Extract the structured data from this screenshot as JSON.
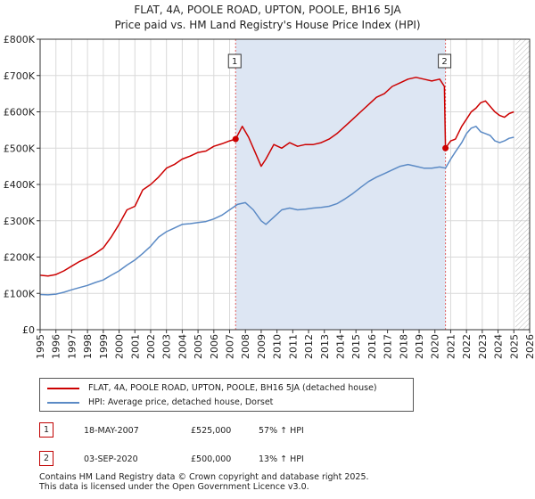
{
  "header": {
    "title": "FLAT, 4A, POOLE ROAD, UPTON, POOLE, BH16 5JA",
    "subtitle": "Price paid vs. HM Land Registry's House Price Index (HPI)"
  },
  "chart_data": {
    "type": "line",
    "title": "FLAT, 4A, POOLE ROAD, UPTON, POOLE, BH16 5JA",
    "subtitle": "Price paid vs. HM Land Registry's House Price Index (HPI)",
    "xlim": [
      1995,
      2026
    ],
    "ylim": [
      0,
      800000
    ],
    "x_ticks": [
      1995,
      1996,
      1997,
      1998,
      1999,
      2000,
      2001,
      2002,
      2003,
      2004,
      2005,
      2006,
      2007,
      2008,
      2009,
      2010,
      2011,
      2012,
      2013,
      2014,
      2015,
      2016,
      2017,
      2018,
      2019,
      2020,
      2021,
      2022,
      2023,
      2024,
      2025,
      2026
    ],
    "x_tick_labels": [
      "1995",
      "1996",
      "1997",
      "1998",
      "1999",
      "2000",
      "2001",
      "2002",
      "2003",
      "2004",
      "2005",
      "2006",
      "2007",
      "2008",
      "2009",
      "2010",
      "2011",
      "2012",
      "2013",
      "2014",
      "2015",
      "2016",
      "2017",
      "2018",
      "2019",
      "2020",
      "2021",
      "2022",
      "2023",
      "2024",
      "2025",
      "2026"
    ],
    "y_ticks": [
      0,
      100000,
      200000,
      300000,
      400000,
      500000,
      600000,
      700000,
      800000
    ],
    "y_tick_labels": [
      "£0",
      "£100K",
      "£200K",
      "£300K",
      "£400K",
      "£500K",
      "£600K",
      "£700K",
      "£800K"
    ],
    "grid": true,
    "colors": {
      "property": "#cc0000",
      "hpi": "#5b8ac5",
      "shade": "#dde6f3",
      "vline": "#e06060",
      "hatch": "#bbbbbb"
    },
    "shaded_regions": [
      [
        2007.38,
        2020.67
      ]
    ],
    "hatched_region": [
      2025.1,
      2026
    ],
    "series": [
      {
        "name": "FLAT, 4A, POOLE ROAD, UPTON, POOLE, BH16 5JA (detached house)",
        "color": "#cc0000",
        "x": [
          1995.0,
          1995.5,
          1996.0,
          1996.5,
          1997.0,
          1997.5,
          1998.0,
          1998.5,
          1999.0,
          1999.5,
          2000.0,
          2000.5,
          2001.0,
          2001.5,
          2002.0,
          2002.5,
          2003.0,
          2003.5,
          2004.0,
          2004.5,
          2005.0,
          2005.5,
          2006.0,
          2006.5,
          2007.0,
          2007.38,
          2007.8,
          2008.2,
          2008.6,
          2009.0,
          2009.3,
          2009.8,
          2010.3,
          2010.8,
          2011.3,
          2011.8,
          2012.3,
          2012.8,
          2013.3,
          2013.8,
          2014.3,
          2014.8,
          2015.3,
          2015.8,
          2016.3,
          2016.8,
          2017.3,
          2017.8,
          2018.3,
          2018.8,
          2019.3,
          2019.8,
          2020.3,
          2020.6,
          2020.67,
          2021.0,
          2021.3,
          2021.7,
          2022.0,
          2022.3,
          2022.6,
          2022.9,
          2023.2,
          2023.5,
          2023.8,
          2024.1,
          2024.4,
          2024.7,
          2025.0
        ],
        "y": [
          150000,
          148000,
          152000,
          162000,
          175000,
          188000,
          198000,
          210000,
          225000,
          255000,
          290000,
          330000,
          340000,
          385000,
          400000,
          420000,
          445000,
          455000,
          470000,
          478000,
          488000,
          492000,
          505000,
          512000,
          520000,
          525000,
          560000,
          530000,
          490000,
          450000,
          470000,
          510000,
          500000,
          515000,
          505000,
          510000,
          510000,
          515000,
          525000,
          540000,
          560000,
          580000,
          600000,
          620000,
          640000,
          650000,
          670000,
          680000,
          690000,
          695000,
          690000,
          685000,
          690000,
          670000,
          500000,
          520000,
          525000,
          560000,
          580000,
          600000,
          610000,
          625000,
          630000,
          615000,
          600000,
          590000,
          585000,
          595000,
          600000
        ]
      },
      {
        "name": "HPI: Average price, detached house, Dorset",
        "color": "#5b8ac5",
        "x": [
          1995.0,
          1995.5,
          1996.0,
          1996.5,
          1997.0,
          1997.5,
          1998.0,
          1998.5,
          1999.0,
          1999.5,
          2000.0,
          2000.5,
          2001.0,
          2001.5,
          2002.0,
          2002.5,
          2003.0,
          2003.5,
          2004.0,
          2004.5,
          2005.0,
          2005.5,
          2006.0,
          2006.5,
          2007.0,
          2007.5,
          2008.0,
          2008.5,
          2009.0,
          2009.3,
          2009.8,
          2010.3,
          2010.8,
          2011.3,
          2011.8,
          2012.3,
          2012.8,
          2013.3,
          2013.8,
          2014.3,
          2014.8,
          2015.3,
          2015.8,
          2016.3,
          2016.8,
          2017.3,
          2017.8,
          2018.3,
          2018.8,
          2019.3,
          2019.8,
          2020.3,
          2020.67,
          2021.0,
          2021.3,
          2021.7,
          2022.0,
          2022.3,
          2022.6,
          2022.9,
          2023.2,
          2023.5,
          2023.8,
          2024.1,
          2024.4,
          2024.7,
          2025.0
        ],
        "y": [
          97000,
          96000,
          98000,
          103000,
          110000,
          116000,
          122000,
          130000,
          137000,
          150000,
          162000,
          178000,
          192000,
          210000,
          230000,
          255000,
          270000,
          280000,
          290000,
          292000,
          295000,
          298000,
          305000,
          315000,
          330000,
          345000,
          350000,
          330000,
          300000,
          290000,
          310000,
          330000,
          335000,
          330000,
          332000,
          335000,
          337000,
          340000,
          347000,
          360000,
          375000,
          392000,
          408000,
          420000,
          430000,
          440000,
          450000,
          455000,
          450000,
          445000,
          445000,
          448000,
          445000,
          470000,
          490000,
          515000,
          540000,
          555000,
          560000,
          545000,
          540000,
          535000,
          520000,
          515000,
          520000,
          527000,
          530000
        ]
      }
    ],
    "sale_markers": [
      {
        "label": "1",
        "x": 2007.38,
        "y": 525000
      },
      {
        "label": "2",
        "x": 2020.67,
        "y": 500000
      }
    ]
  },
  "legend": {
    "items": [
      {
        "label": "FLAT, 4A, POOLE ROAD, UPTON, POOLE, BH16 5JA (detached house)",
        "color": "#cc0000"
      },
      {
        "label": "HPI: Average price, detached house, Dorset",
        "color": "#5b8ac5"
      }
    ]
  },
  "transactions": [
    {
      "badge": "1",
      "date": "18-MAY-2007",
      "price": "£525,000",
      "hpi": "57% ↑ HPI"
    },
    {
      "badge": "2",
      "date": "03-SEP-2020",
      "price": "£500,000",
      "hpi": "13% ↑ HPI"
    }
  ],
  "footer": {
    "line1": "Contains HM Land Registry data © Crown copyright and database right 2025.",
    "line2": "This data is licensed under the Open Government Licence v3.0."
  }
}
